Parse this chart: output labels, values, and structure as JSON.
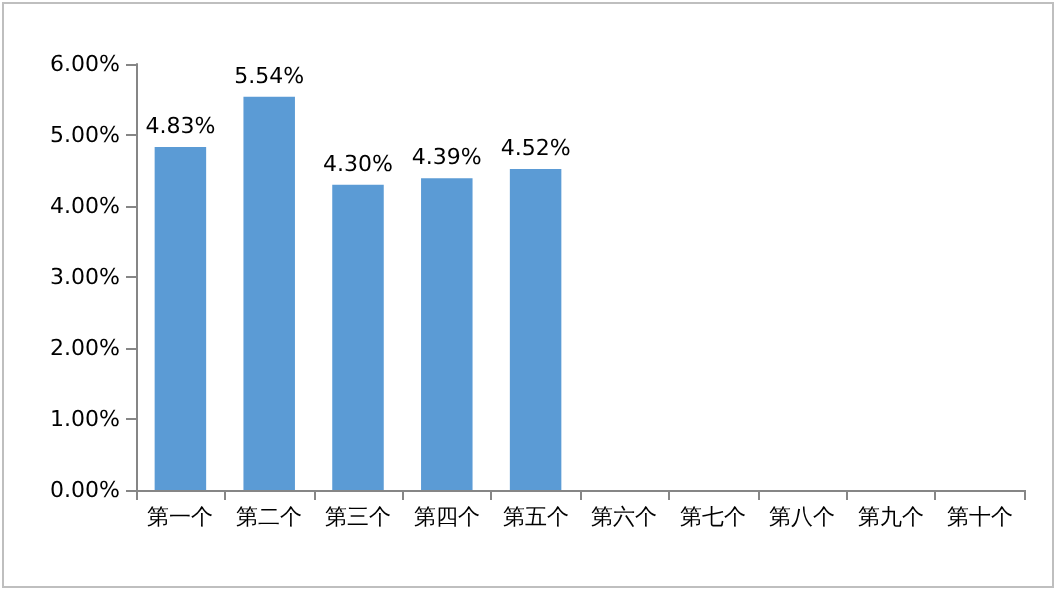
{
  "chart_data": {
    "type": "bar",
    "categories": [
      "第一个",
      "第二个",
      "第三个",
      "第四个",
      "第五个",
      "第六个",
      "第七个",
      "第八个",
      "第九个",
      "第十个"
    ],
    "values": [
      4.83,
      5.54,
      4.3,
      4.39,
      4.52,
      null,
      null,
      null,
      null,
      null
    ],
    "value_labels": [
      "4.83%",
      "5.54%",
      "4.30%",
      "4.39%",
      "4.52%",
      null,
      null,
      null,
      null,
      null
    ],
    "color": "#5b9bd5",
    "ylim": [
      0,
      6
    ],
    "yticks": [
      {
        "value": 0,
        "label": "0.00%"
      },
      {
        "value": 1,
        "label": "1.00%"
      },
      {
        "value": 2,
        "label": "2.00%"
      },
      {
        "value": 3,
        "label": "3.00%"
      },
      {
        "value": 4,
        "label": "4.00%"
      },
      {
        "value": 5,
        "label": "5.00%"
      },
      {
        "value": 6,
        "label": "6.00%"
      }
    ],
    "grid": false
  }
}
